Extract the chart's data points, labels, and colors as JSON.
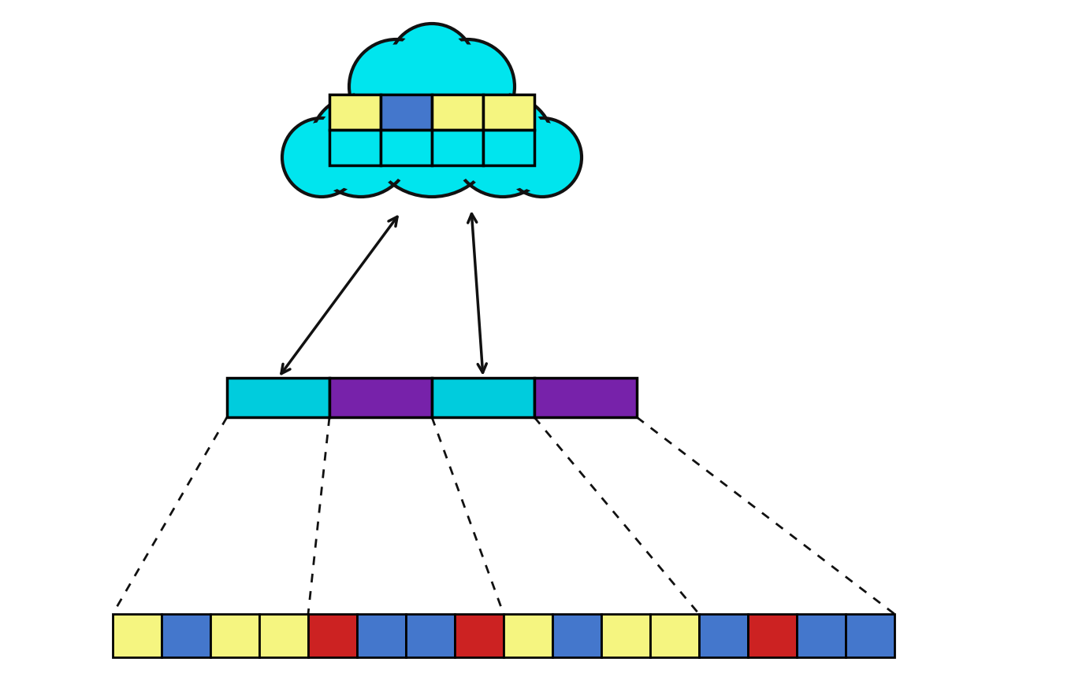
{
  "cloud_color": "#00E5EE",
  "cloud_outline": "#111111",
  "prototype_cells_top": [
    "#F5F580",
    "#4477CC",
    "#F5F580",
    "#F5F580"
  ],
  "prototype_cell_bottom_color": "#00E5EE",
  "middle_cells": [
    "#00CCDD",
    "#7722AA",
    "#00CCDD",
    "#7722AA"
  ],
  "bottom_cells": [
    "#F5F580",
    "#4477CC",
    "#F5F580",
    "#F5F580",
    "#CC2222",
    "#4477CC",
    "#4477CC",
    "#CC2222",
    "#F5F580",
    "#4477CC",
    "#F5F580",
    "#F5F580",
    "#4477CC",
    "#CC2222",
    "#4477CC",
    "#4477CC"
  ],
  "bg_color": "#FFFFFF",
  "arrow_color": "#111111",
  "line_color": "#111111"
}
